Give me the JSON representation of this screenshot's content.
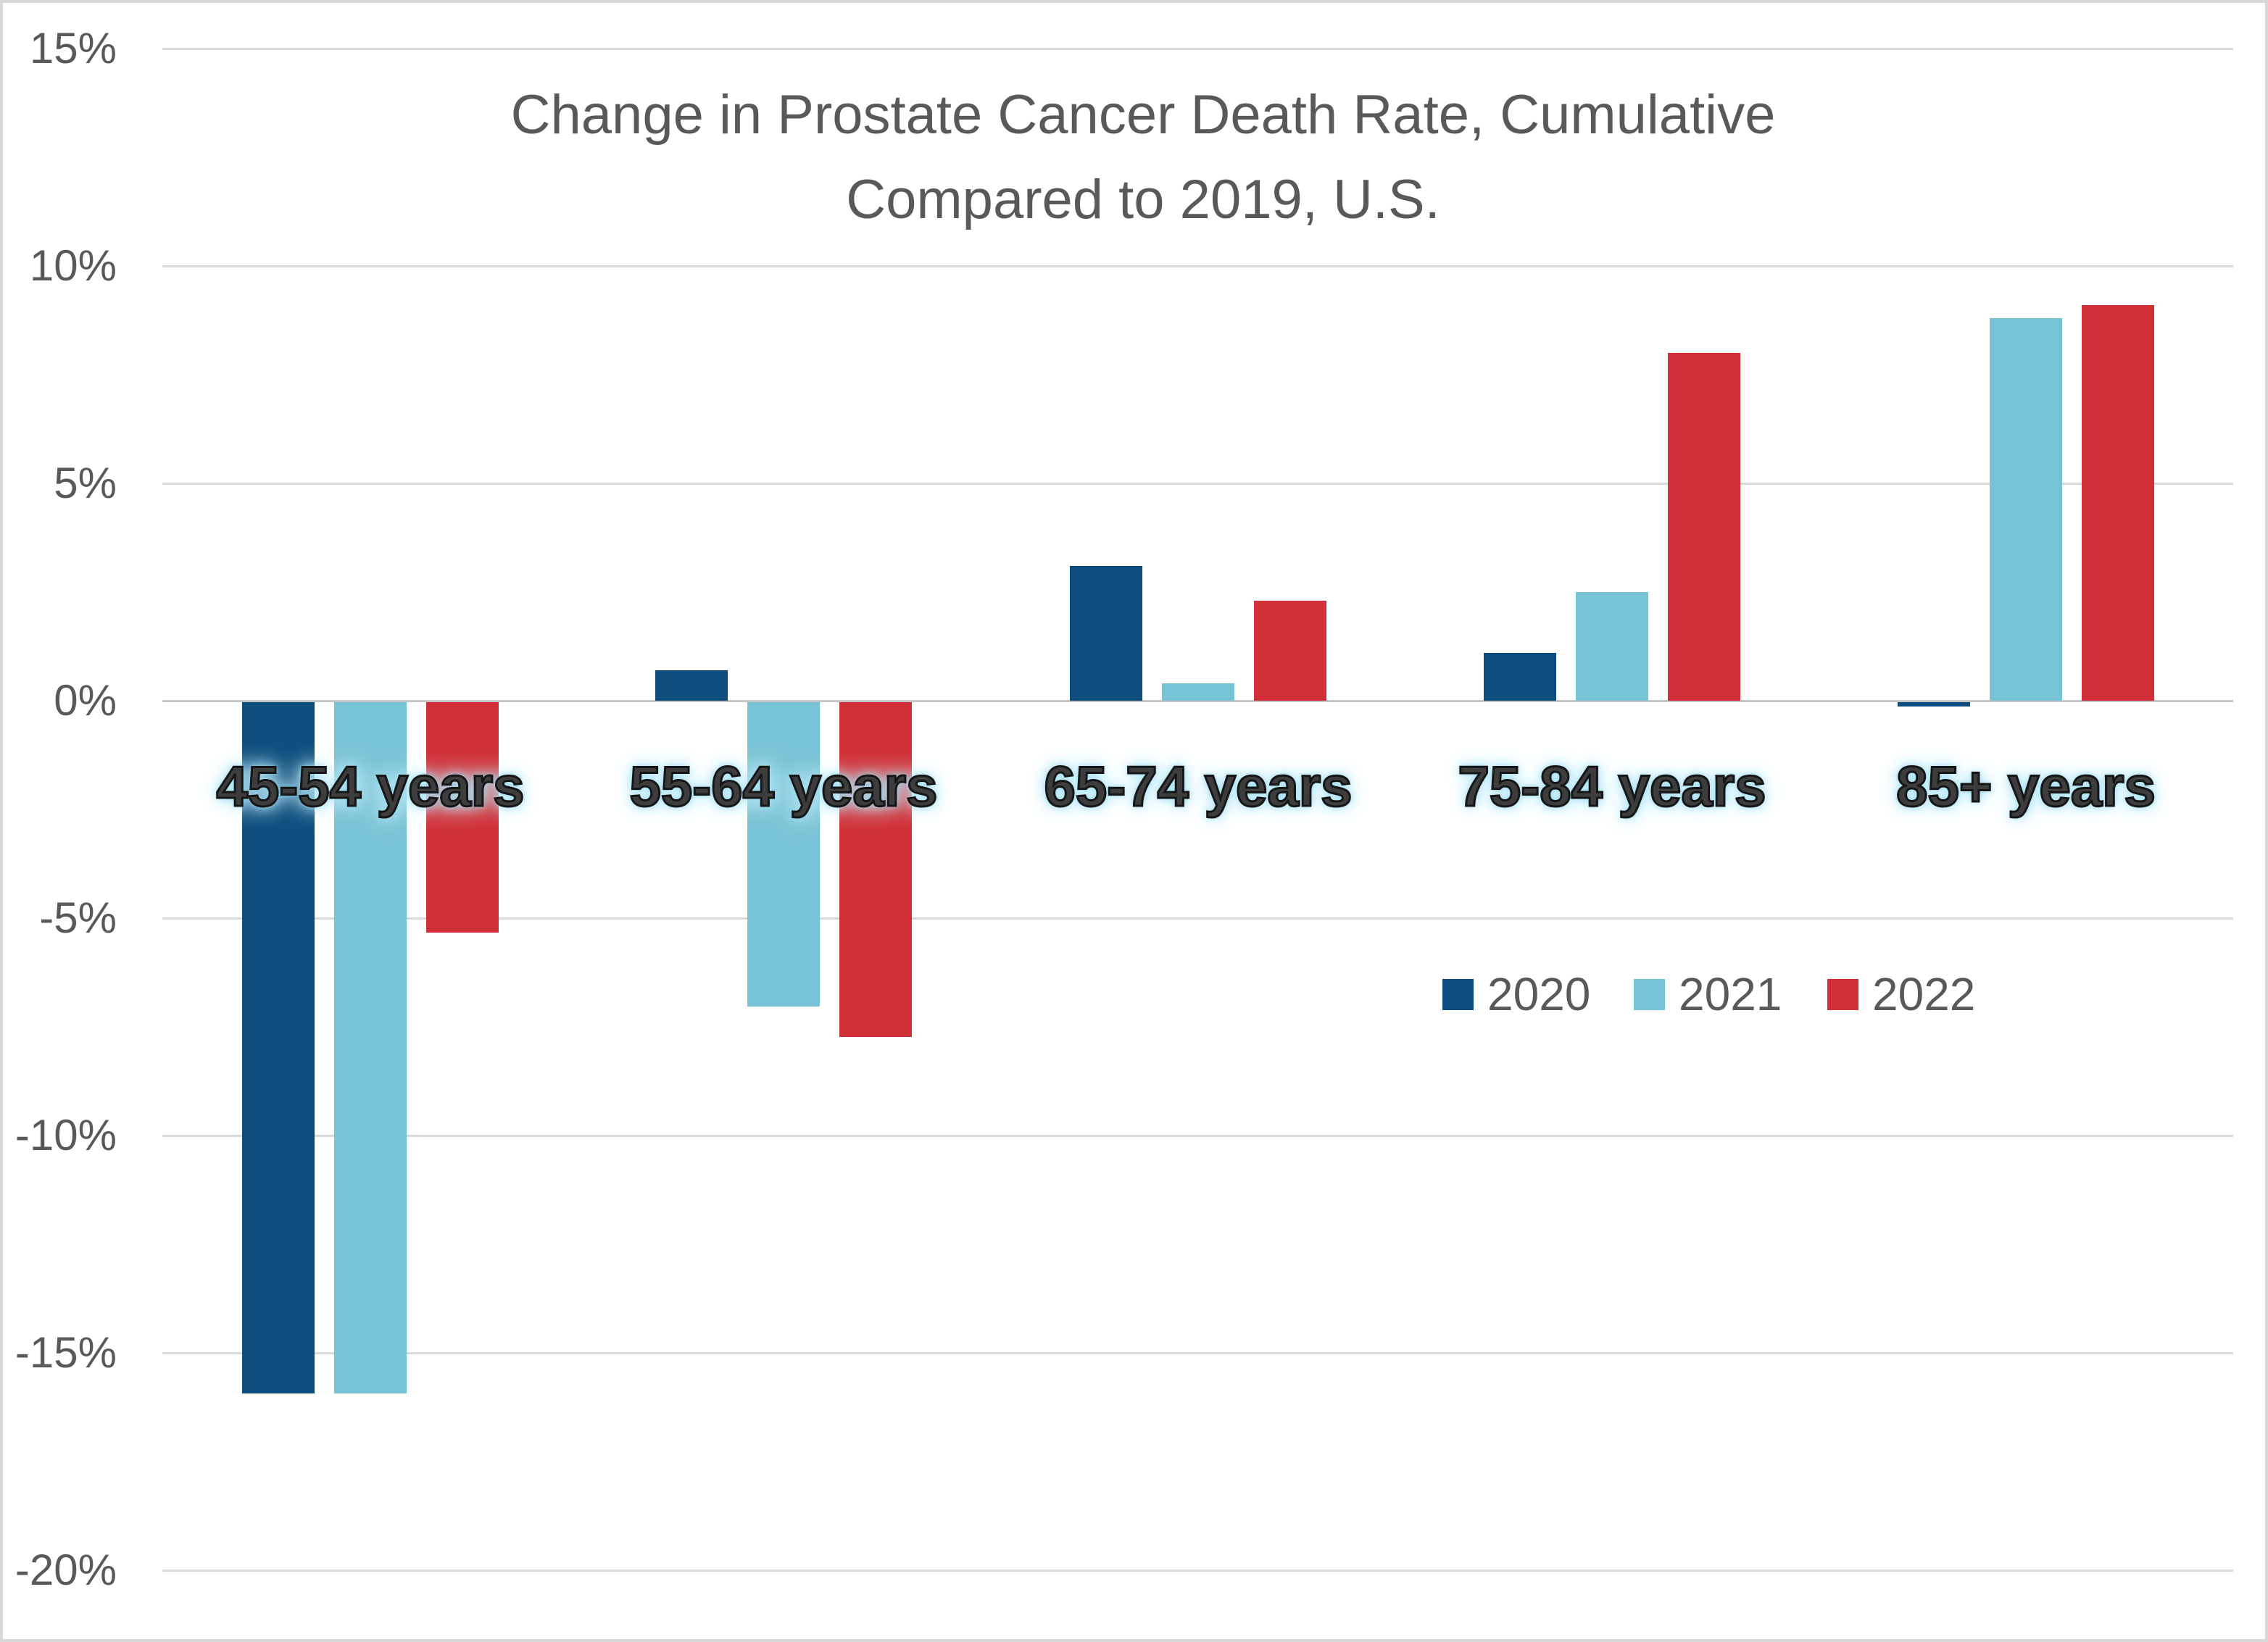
{
  "chart_data": {
    "type": "bar",
    "title": "Change in Prostate Cancer Death Rate, Cumulative",
    "subtitle": "Compared to 2019, U.S.",
    "categories": [
      "45-54 years",
      "55-64 years",
      "65-74 years",
      "75-84 years",
      "85+ years"
    ],
    "series": [
      {
        "name": "2020",
        "color": "#0D4E7E",
        "values": [
          -15.9,
          0.7,
          3.1,
          1.1,
          -0.1
        ]
      },
      {
        "name": "2021",
        "color": "#79C3D6",
        "values": [
          -15.9,
          -7.0,
          0.4,
          2.5,
          8.8
        ]
      },
      {
        "name": "2022",
        "color": "#D03038",
        "values": [
          -5.3,
          -7.7,
          2.3,
          8.0,
          9.1
        ]
      }
    ],
    "y_axis": {
      "unit": "%",
      "min": -20,
      "max": 15,
      "tick_step": 5,
      "ticks": [
        15,
        10,
        5,
        0,
        -5,
        -10,
        -15,
        -20
      ],
      "tick_labels": [
        "15%",
        "10%",
        "5%",
        "0%",
        "-5%",
        "-10%",
        "-15%",
        "-20%"
      ]
    },
    "grid": true,
    "legend_position": "middle-right",
    "legend_entries": [
      "2020",
      "2021",
      "2022"
    ],
    "colors": {
      "background": "#FFFFFF",
      "border": "#D8D8D8",
      "gridline": "#D9D9D9",
      "zero_line": "#C6C6C6",
      "axis_text": "#595959",
      "title_text": "#595959",
      "category_label_fill": "#3D3D3D",
      "category_label_outline": "#161616",
      "category_label_glow": "#A5E0F3"
    }
  }
}
